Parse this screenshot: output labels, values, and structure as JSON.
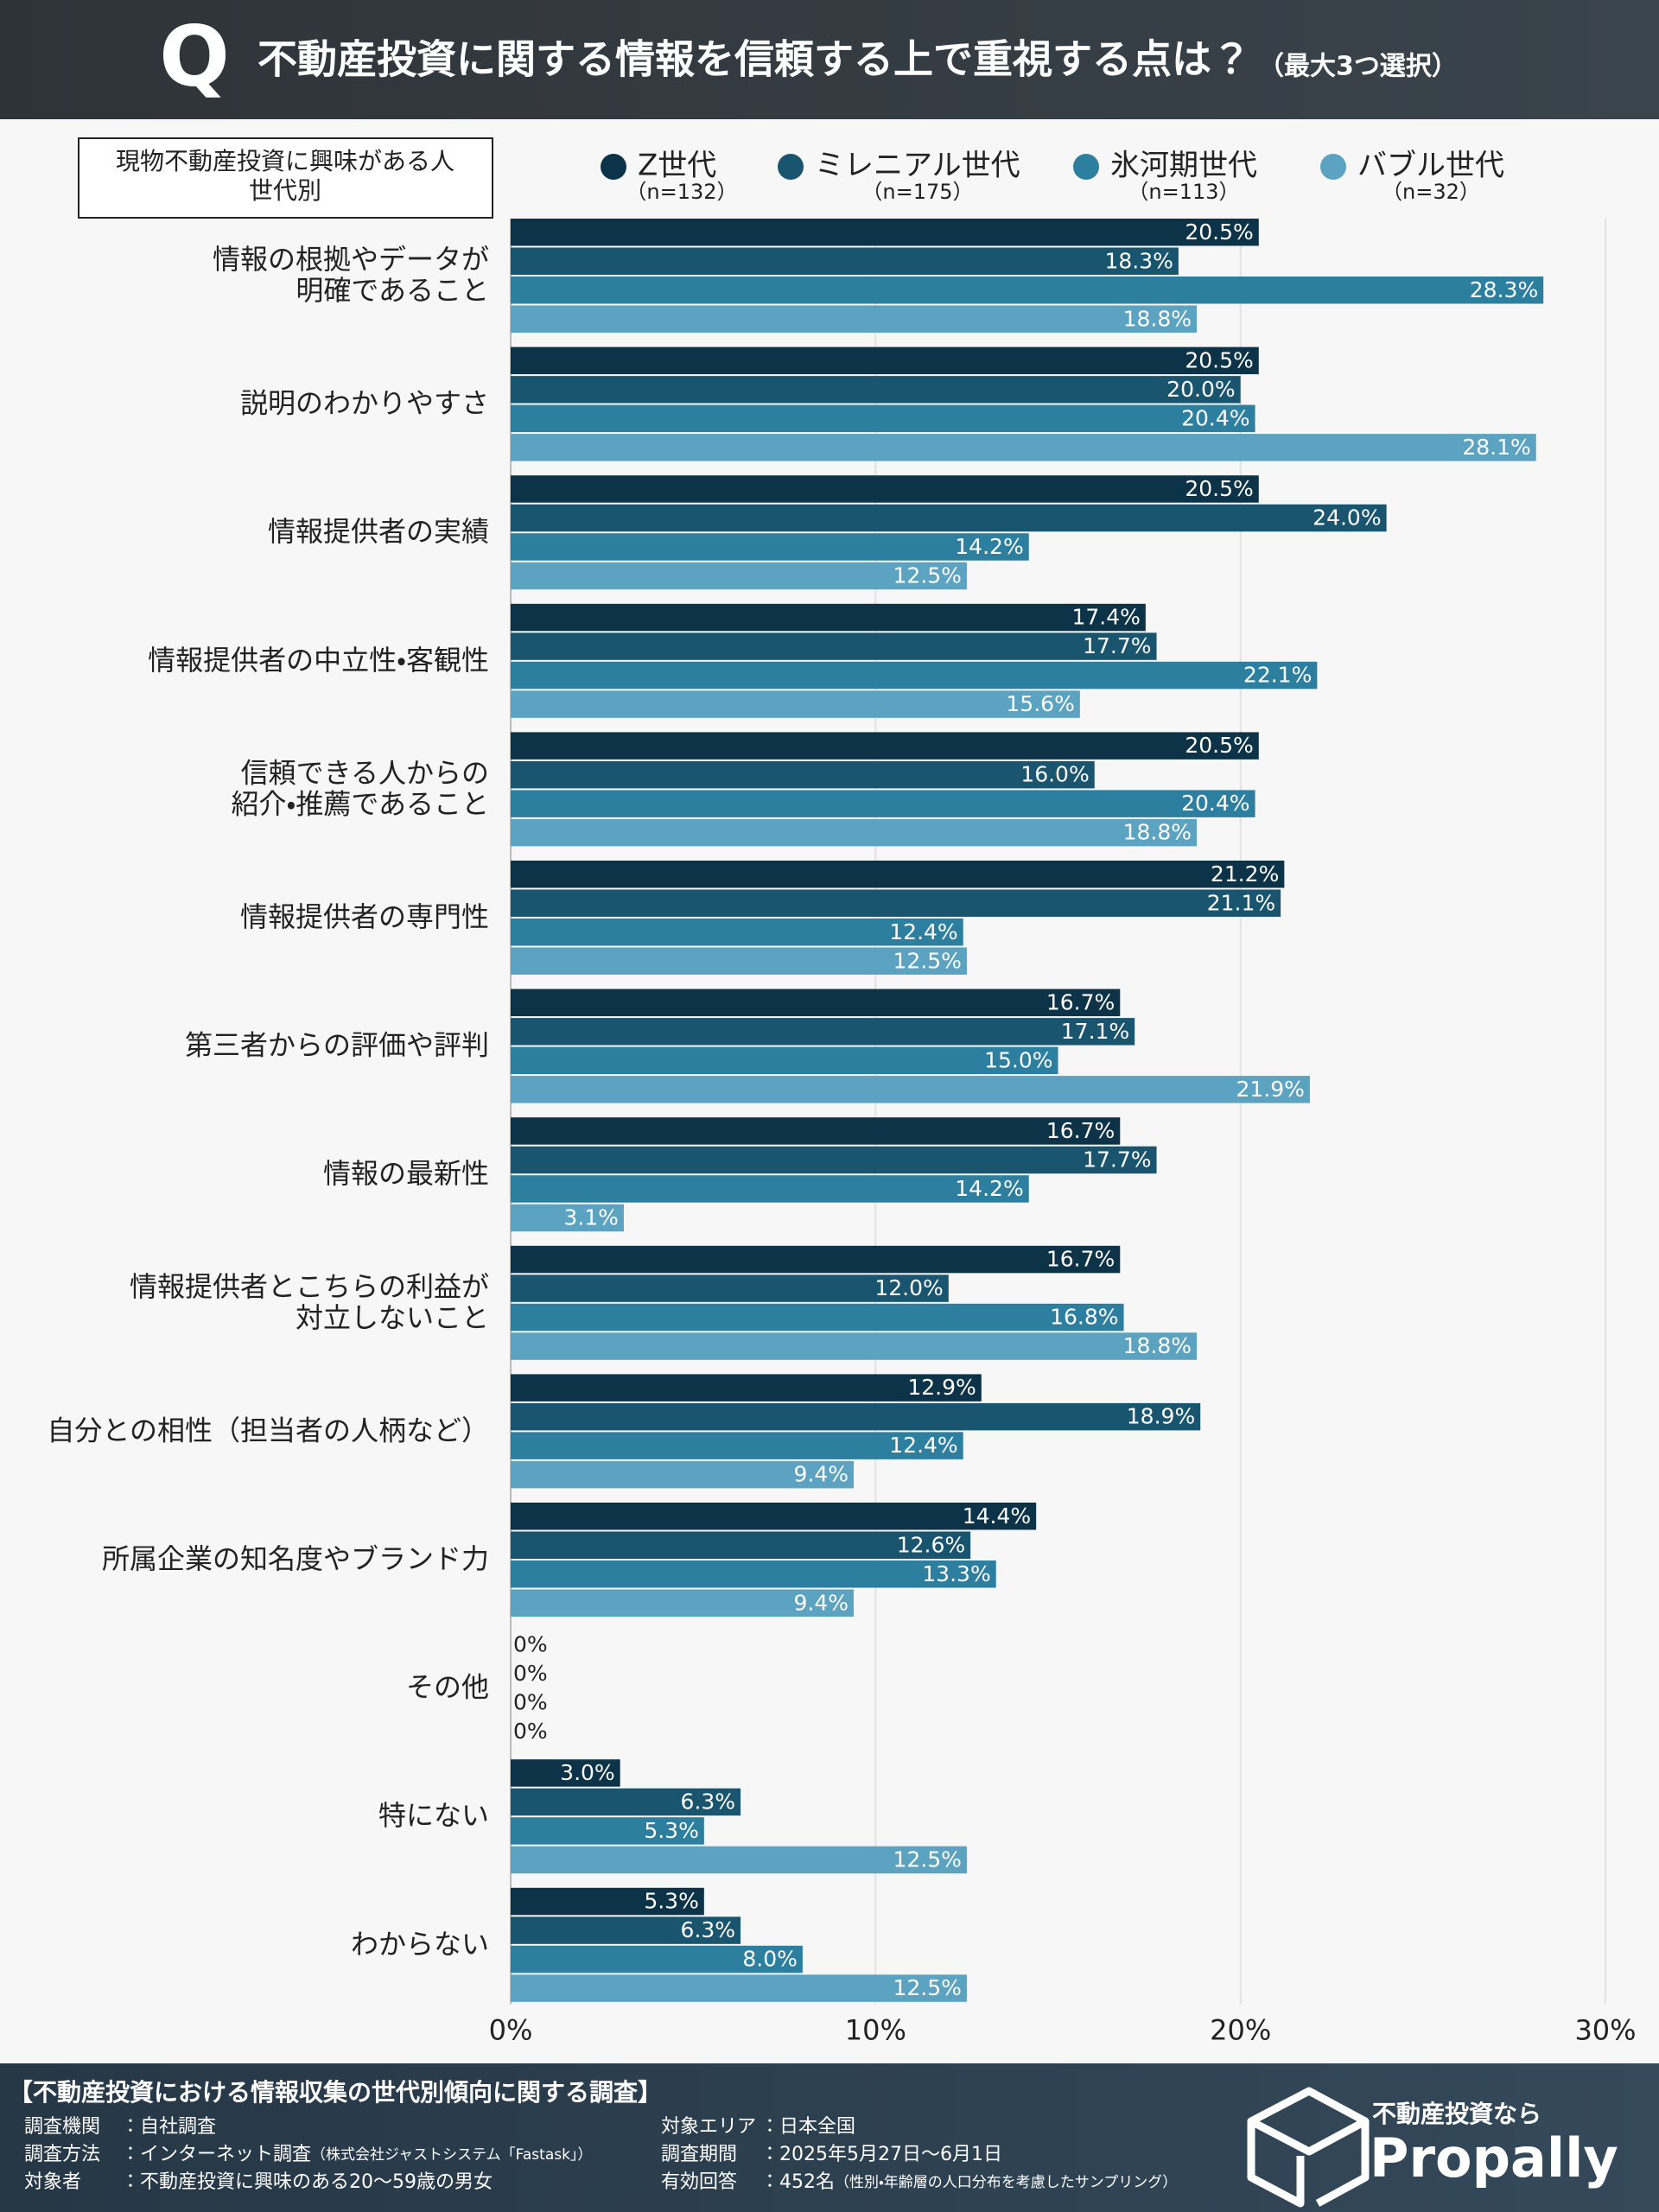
{
  "header": {
    "mark": "Q",
    "title": "不動産投資に関する情報を信頼する上で重視する点は？",
    "note": "（最大3つ選択）"
  },
  "chart_data": {
    "type": "bar",
    "orientation": "horizontal",
    "legend_title": [
      "現物不動産投資に興味がある人",
      "世代別"
    ],
    "categories": [
      [
        "情報の根拠やデータが",
        "明確であること"
      ],
      [
        "説明のわかりやすさ"
      ],
      [
        "情報提供者の実績"
      ],
      [
        "情報提供者の中立性・客観性"
      ],
      [
        "信頼できる人からの",
        "紹介・推薦であること"
      ],
      [
        "情報提供者の専門性"
      ],
      [
        "第三者からの評価や評判"
      ],
      [
        "情報の最新性"
      ],
      [
        "情報提供者とこちらの利益が",
        "対立しないこと"
      ],
      [
        "自分との相性（担当者の人柄など）"
      ],
      [
        "所属企業の知名度やブランド力"
      ],
      [
        "その他"
      ],
      [
        "特にない"
      ],
      [
        "わからない"
      ]
    ],
    "series": [
      {
        "name": "Z世代",
        "n": "（n=132）",
        "color": "#0d3349",
        "values": [
          20.5,
          20.5,
          20.5,
          17.4,
          20.5,
          21.2,
          16.7,
          16.7,
          16.7,
          12.9,
          14.4,
          0,
          3.0,
          5.3
        ],
        "value_labels": [
          "20.5%",
          "20.5%",
          "20.5%",
          "17.4%",
          "20.5%",
          "21.2%",
          "16.7%",
          "16.7%",
          "16.7%",
          "12.9%",
          "14.4%",
          "0%",
          "3.0%",
          "5.3%"
        ]
      },
      {
        "name": "ミレニアル世代",
        "n": "（n=175）",
        "color": "#1a5570",
        "values": [
          18.3,
          20.0,
          24.0,
          17.7,
          16.0,
          21.1,
          17.1,
          17.7,
          12.0,
          18.9,
          12.6,
          0,
          6.3,
          6.3
        ],
        "value_labels": [
          "18.3%",
          "20.0%",
          "24.0%",
          "17.7%",
          "16.0%",
          "21.1%",
          "17.1%",
          "17.7%",
          "12.0%",
          "18.9%",
          "12.6%",
          "0%",
          "6.3%",
          "6.3%"
        ]
      },
      {
        "name": "氷河期世代",
        "n": "（n=113）",
        "color": "#2d7fa0",
        "values": [
          28.3,
          20.4,
          14.2,
          22.1,
          20.4,
          12.4,
          15.0,
          14.2,
          16.8,
          12.4,
          13.3,
          0,
          5.3,
          8.0
        ],
        "value_labels": [
          "28.3%",
          "20.4%",
          "14.2%",
          "22.1%",
          "20.4%",
          "12.4%",
          "15.0%",
          "14.2%",
          "16.8%",
          "12.4%",
          "13.3%",
          "0%",
          "5.3%",
          "8.0%"
        ]
      },
      {
        "name": "バブル世代",
        "n": "（n=32）",
        "color": "#5ba3c0",
        "values": [
          18.8,
          28.1,
          12.5,
          15.6,
          18.8,
          12.5,
          21.9,
          3.1,
          18.8,
          9.4,
          9.4,
          0,
          12.5,
          12.5
        ],
        "value_labels": [
          "18.8%",
          "28.1%",
          "12.5%",
          "15.6%",
          "18.8%",
          "12.5%",
          "21.9%",
          "3.1%",
          "18.8%",
          "9.4%",
          "9.4%",
          "0%",
          "12.5%",
          "12.5%"
        ]
      }
    ],
    "xlim": [
      0,
      30
    ],
    "xticks": [
      {
        "value": 0,
        "label": "0%"
      },
      {
        "value": 10,
        "label": "10%"
      },
      {
        "value": 20,
        "label": "20%"
      },
      {
        "value": 30,
        "label": "30%"
      }
    ],
    "grid": true
  },
  "footer": {
    "title": "【不動産投資における情報収集の世代別傾向に関する調査】",
    "left": [
      {
        "label": "調査機関",
        "value": "：自社調査",
        "note": ""
      },
      {
        "label": "調査方法",
        "value": "：インターネット調査",
        "note": "（株式会社ジャストシステム「Fastask」）"
      },
      {
        "label": "対象者",
        "value": "：不動産投資に興味のある20～59歳の男女",
        "note": ""
      }
    ],
    "right": [
      {
        "label": "対象エリア",
        "value": "：日本全国",
        "note": ""
      },
      {
        "label": "調査期間",
        "value": "：2025年5月27日～6月1日",
        "note": ""
      },
      {
        "label": "有効回答",
        "value": "：452名",
        "note": "（性別・年齢層の人口分布を考慮したサンプリング）"
      }
    ],
    "logo_tagline": "不動産投資なら",
    "logo_name": "Propally"
  }
}
